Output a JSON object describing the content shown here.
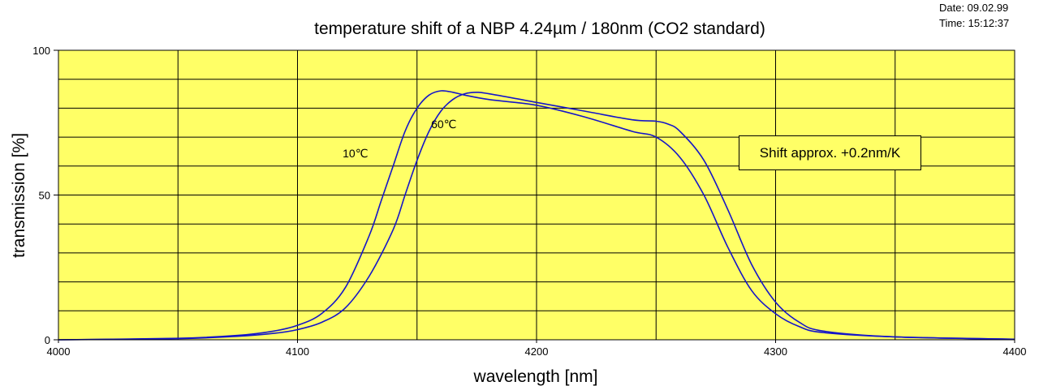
{
  "header": {
    "date": "Date: 09.02.99",
    "time": "Time: 15:12:37"
  },
  "colors": {
    "plot_background": "#ffff66",
    "curve": "#1515c8",
    "grid": "#000000"
  },
  "chart_data": {
    "type": "line",
    "title": "temperature shift of a NBP 4.24µm / 180nm (CO2 standard)",
    "xlabel": "wavelength [nm]",
    "ylabel": "transmission [%]",
    "xlim": [
      4000,
      4400
    ],
    "ylim": [
      0,
      100
    ],
    "xticks": [
      4000,
      4100,
      4200,
      4300,
      4400
    ],
    "yticks": [
      0,
      50,
      100
    ],
    "grid": true,
    "annotation": "Shift approx. +0.2nm/K",
    "series": [
      {
        "name": "10℃",
        "x": [
          4000,
          4050,
          4075,
          4090,
          4100,
          4110,
          4120,
          4130,
          4135,
          4140,
          4145,
          4150,
          4155,
          4160,
          4165,
          4170,
          4180,
          4200,
          4220,
          4240,
          4250,
          4260,
          4270,
          4280,
          4290,
          4300,
          4310,
          4320,
          4350,
          4400
        ],
        "y": [
          0,
          0.5,
          1.5,
          3,
          5,
          9,
          18,
          36,
          48,
          60,
          72,
          80,
          84.5,
          86,
          85.5,
          84.5,
          83,
          81,
          77,
          72,
          70,
          63,
          50,
          32,
          17,
          9,
          4.5,
          2.5,
          1,
          0.2
        ]
      },
      {
        "name": "60℃",
        "x": [
          4000,
          4050,
          4075,
          4090,
          4100,
          4110,
          4120,
          4130,
          4140,
          4145,
          4150,
          4155,
          4160,
          4165,
          4170,
          4175,
          4180,
          4200,
          4220,
          4240,
          4250,
          4255,
          4260,
          4270,
          4280,
          4290,
          4300,
          4310,
          4320,
          4350,
          4400
        ],
        "y": [
          0,
          0.4,
          1.2,
          2.2,
          3.5,
          6,
          11,
          22,
          38,
          50,
          62,
          72,
          79,
          83,
          85,
          85.5,
          85,
          82,
          79,
          76,
          75.5,
          74.5,
          72,
          62,
          45,
          26,
          13,
          6,
          3,
          1,
          0.2
        ]
      }
    ],
    "series_labels": [
      {
        "name": "10℃",
        "x": 4125,
        "y": 64
      },
      {
        "name": "60℃",
        "x": 4162,
        "y": 74
      }
    ]
  }
}
